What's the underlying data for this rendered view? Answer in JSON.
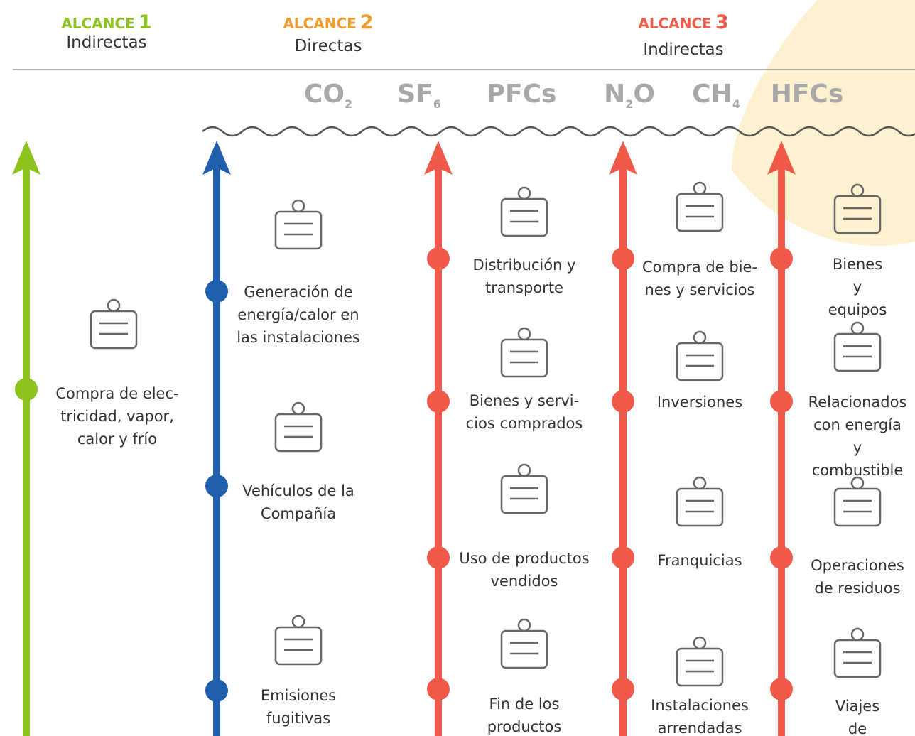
{
  "scopes": [
    {
      "label": "ALCANCE",
      "number": "1",
      "subtitle": "Indirectas"
    },
    {
      "label": "ALCANCE",
      "number": "2",
      "subtitle": "Directas"
    },
    {
      "label": "ALCANCE",
      "number": "3",
      "subtitle": "Indirectas"
    }
  ],
  "gases": [
    {
      "text": "CO",
      "sub": "2"
    },
    {
      "text": "SF",
      "sub": "6"
    },
    {
      "text": "PFCs"
    },
    {
      "text": "N",
      "sub": "2",
      "tail": "O"
    },
    {
      "text": "CH",
      "sub": "4"
    },
    {
      "text": "HFCs"
    }
  ],
  "columns": [
    {
      "items": [
        "Compra de elec-\ntricidad, vapor,\ncalor y frío"
      ]
    },
    {
      "items": [
        "Generación de\nenergía/calor en\nlas instalaciones",
        "Vehículos de la\nCompañía",
        "Emisiones\nfugitivas"
      ]
    },
    {
      "items": [
        "Distribución y\ntransporte",
        "Bienes y servi-\ncios comprados",
        "Uso de productos\nvendidos",
        "Fin de los\nproductos"
      ]
    },
    {
      "items": [
        "Compra de bie-\nnes y servicios",
        "Inversiones",
        "Franquicias",
        "Instalaciones\narrendadas"
      ]
    },
    {
      "items": [
        "Bienes y\nequipos",
        "Relacionados\ncon energía y\ncombustible",
        "Operaciones\nde residuos",
        "Viajes de\nnegocios"
      ]
    }
  ]
}
